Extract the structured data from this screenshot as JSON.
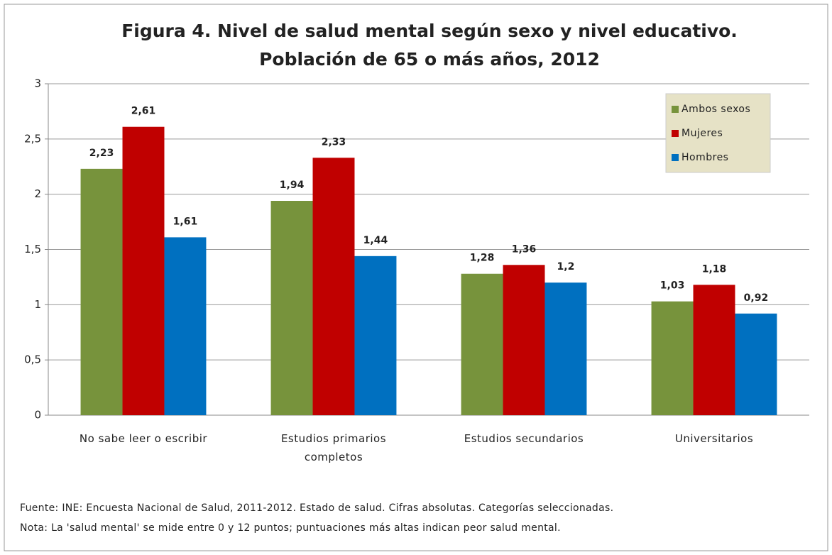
{
  "chart_data": {
    "type": "bar",
    "title": "Figura 4. Nivel de salud mental según sexo y nivel educativo.",
    "subtitle": "Población de 65 o más años, 2012",
    "categories": [
      "No sabe leer o escribir",
      "Estudios primarios completos",
      "Estudios secundarios",
      "Universitarios"
    ],
    "series": [
      {
        "name": "Ambos sexos",
        "color": "#77933c",
        "values": [
          2.23,
          1.94,
          1.28,
          1.03
        ],
        "value_labels": [
          "2,23",
          "1,94",
          "1,28",
          "1,03"
        ]
      },
      {
        "name": "Mujeres",
        "color": "#c00000",
        "values": [
          2.61,
          2.33,
          1.36,
          1.18
        ],
        "value_labels": [
          "2,61",
          "2,33",
          "1,36",
          "1,18"
        ]
      },
      {
        "name": "Hombres",
        "color": "#0070c0",
        "values": [
          1.61,
          1.44,
          1.2,
          0.92
        ],
        "value_labels": [
          "1,61",
          "1,44",
          "1,2",
          "0,92"
        ]
      }
    ],
    "ylim": [
      0,
      3
    ],
    "yticks": [
      0,
      {
        "value": 0.5,
        "label": "0,5"
      },
      1,
      {
        "value": 1.5,
        "label": "1,5"
      },
      2,
      {
        "value": 2.5,
        "label": "2,5"
      },
      3
    ],
    "grid": true,
    "legend": "top-right",
    "source": "Fuente: INE: Encuesta Nacional de Salud, 2011-2012. Estado de salud. Cifras absolutas. Categorías seleccionadas.",
    "note": "Nota: La 'salud mental' se mide entre 0 y 12 puntos; puntuaciones más altas indican peor salud mental."
  }
}
